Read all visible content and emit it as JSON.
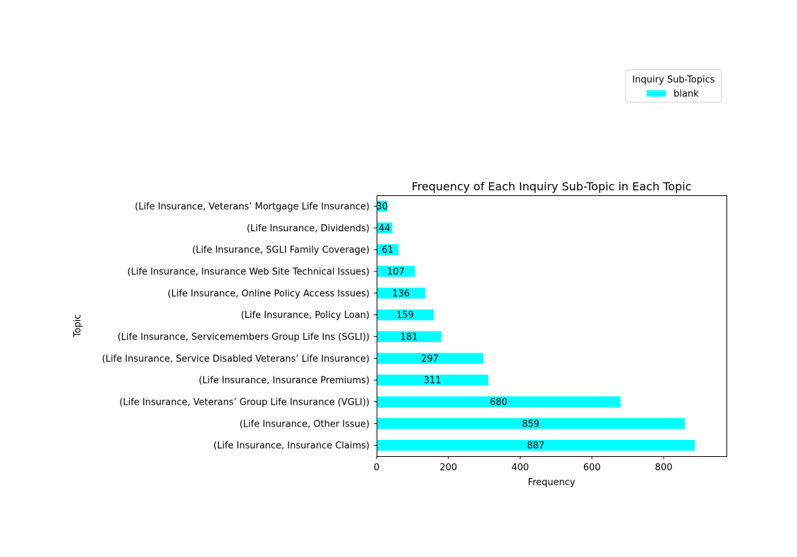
{
  "chart_data": {
    "type": "bar",
    "orientation": "horizontal",
    "title": "Frequency of Each Inquiry Sub-Topic in Each Topic",
    "xlabel": "Frequency",
    "ylabel": "Topic",
    "xlim": [
      0,
      975
    ],
    "xticks": [
      0,
      200,
      400,
      600,
      800
    ],
    "categories": [
      "(Life Insurance, Insurance Claims)",
      "(Life Insurance, Other Issue)",
      "(Life Insurance, Veterans’ Group Life Insurance (VGLI))",
      "(Life Insurance, Insurance Premiums)",
      "(Life Insurance, Service Disabled Veterans’ Life Insurance)",
      "(Life Insurance, Servicemembers Group Life Ins (SGLI))",
      "(Life Insurance, Policy Loan)",
      "(Life Insurance, Online Policy Access Issues)",
      "(Life Insurance, Insurance Web Site Technical Issues)",
      "(Life Insurance, SGLI Family Coverage)",
      "(Life Insurance, Dividends)",
      "(Life Insurance, Veterans’ Mortgage Life Insurance)"
    ],
    "series": [
      {
        "name": "blank",
        "color": "#00ffff",
        "values": [
          887,
          859,
          680,
          311,
          297,
          181,
          159,
          136,
          107,
          61,
          44,
          30
        ]
      }
    ],
    "legend": {
      "title": "Inquiry Sub-Topics",
      "placement": "upper-right, outside plot area"
    },
    "grid": false
  }
}
